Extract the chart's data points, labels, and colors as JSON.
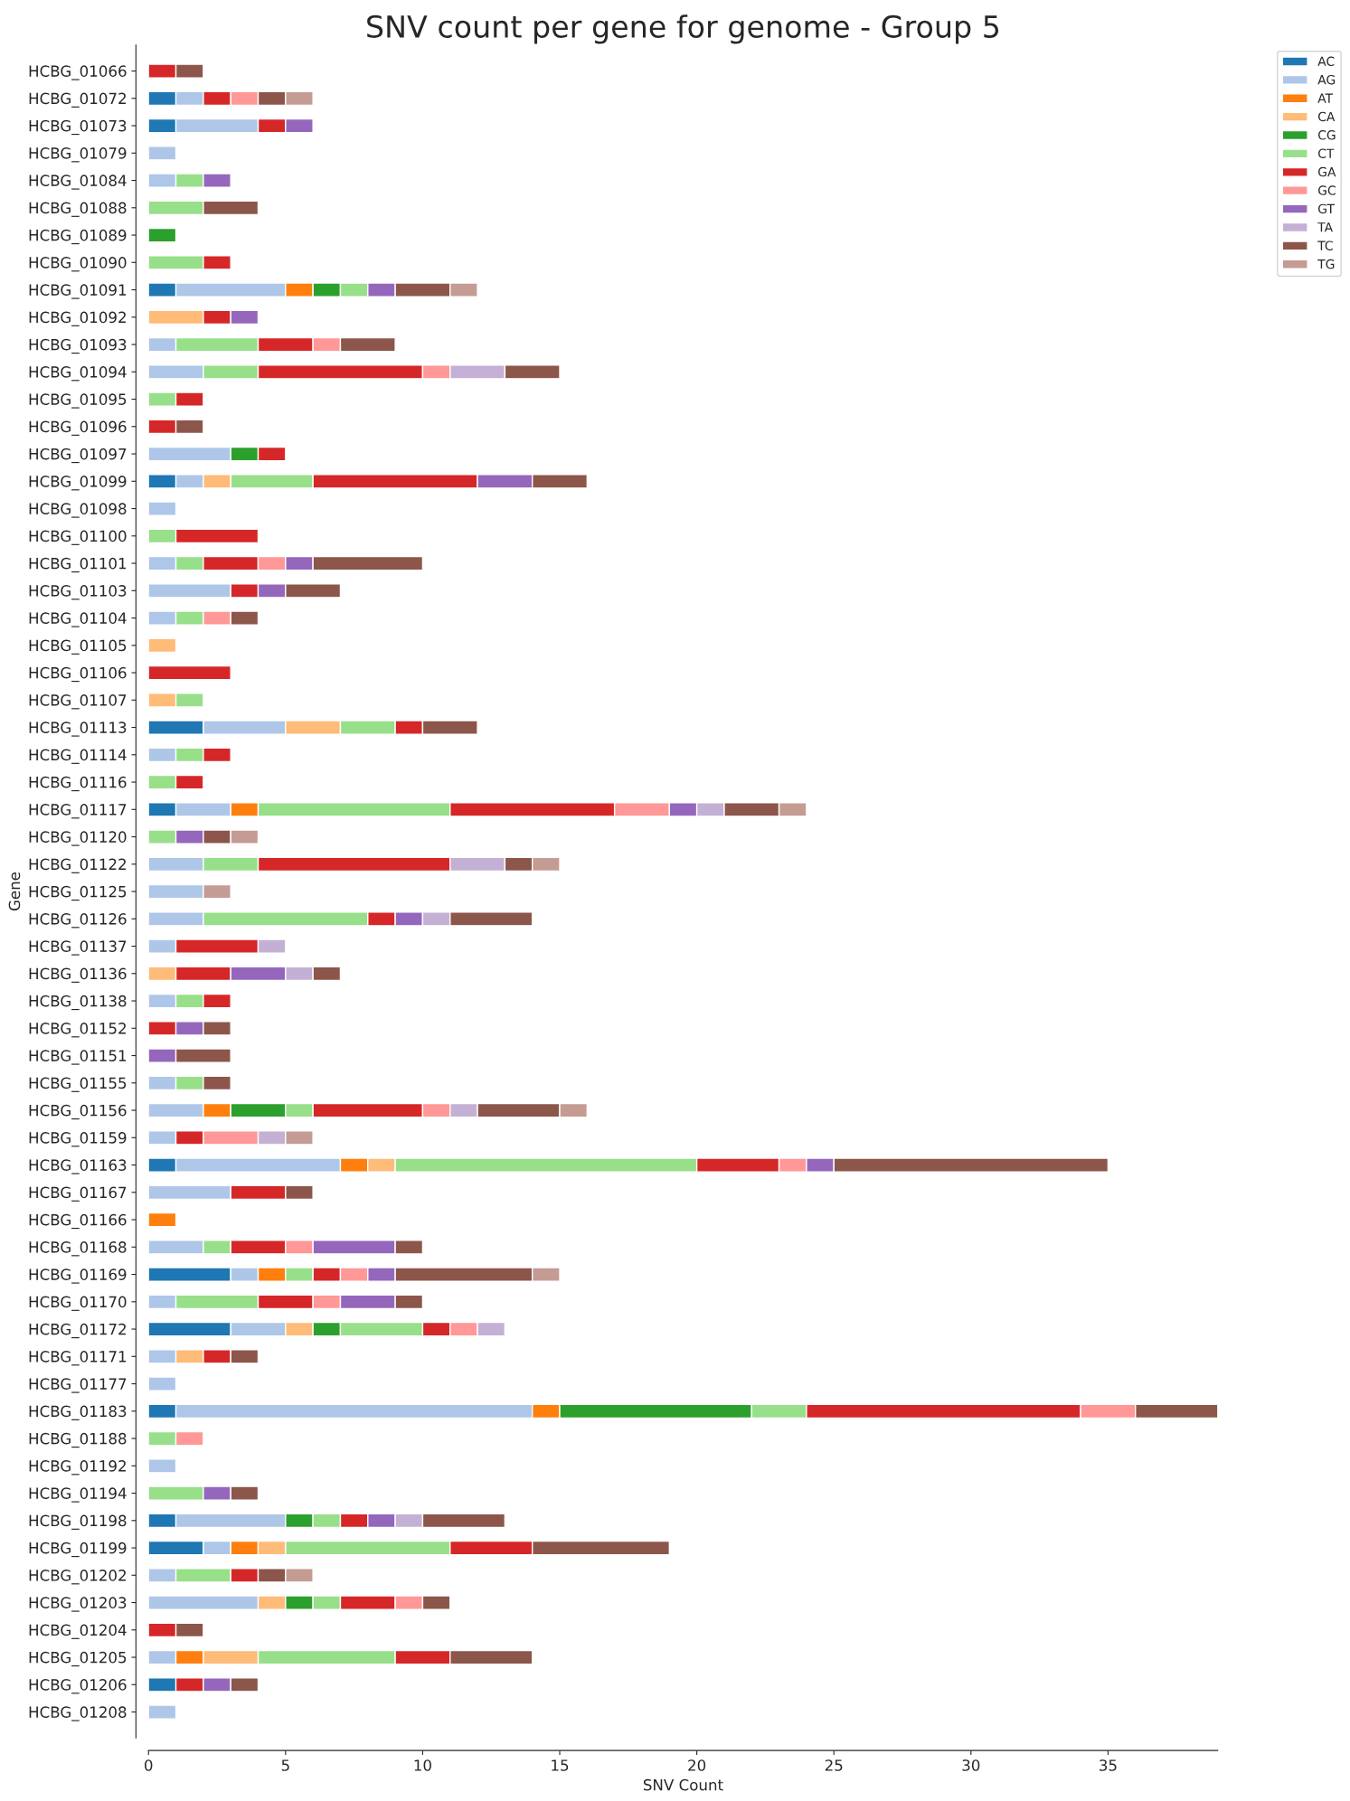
{
  "chart_data": {
    "type": "bar",
    "orientation": "horizontal",
    "stacked": true,
    "title": "SNV count per gene for genome - Group 5",
    "xlabel": "SNV Count",
    "ylabel": "Gene",
    "categories": [
      "HCBG_01066",
      "HCBG_01072",
      "HCBG_01073",
      "HCBG_01079",
      "HCBG_01084",
      "HCBG_01088",
      "HCBG_01089",
      "HCBG_01090",
      "HCBG_01091",
      "HCBG_01092",
      "HCBG_01093",
      "HCBG_01094",
      "HCBG_01095",
      "HCBG_01096",
      "HCBG_01097",
      "HCBG_01099",
      "HCBG_01098",
      "HCBG_01100",
      "HCBG_01101",
      "HCBG_01103",
      "HCBG_01104",
      "HCBG_01105",
      "HCBG_01106",
      "HCBG_01107",
      "HCBG_01113",
      "HCBG_01114",
      "HCBG_01116",
      "HCBG_01117",
      "HCBG_01120",
      "HCBG_01122",
      "HCBG_01125",
      "HCBG_01126",
      "HCBG_01137",
      "HCBG_01136",
      "HCBG_01138",
      "HCBG_01152",
      "HCBG_01151",
      "HCBG_01155",
      "HCBG_01156",
      "HCBG_01159",
      "HCBG_01163",
      "HCBG_01167",
      "HCBG_01166",
      "HCBG_01168",
      "HCBG_01169",
      "HCBG_01170",
      "HCBG_01172",
      "HCBG_01171",
      "HCBG_01177",
      "HCBG_01183",
      "HCBG_01188",
      "HCBG_01192",
      "HCBG_01194",
      "HCBG_01198",
      "HCBG_01199",
      "HCBG_01202",
      "HCBG_01203",
      "HCBG_01204",
      "HCBG_01205",
      "HCBG_01206",
      "HCBG_01208"
    ],
    "series": [
      {
        "name": "AC",
        "color": "#1f77b4",
        "values": [
          0,
          1,
          1,
          0,
          0,
          0,
          0,
          0,
          1,
          0,
          0,
          0,
          0,
          0,
          0,
          1,
          0,
          0,
          0,
          0,
          0,
          0,
          0,
          0,
          2,
          0,
          0,
          1,
          0,
          0,
          0,
          0,
          0,
          0,
          0,
          0,
          0,
          0,
          0,
          0,
          1,
          0,
          0,
          0,
          3,
          0,
          3,
          0,
          0,
          1,
          0,
          0,
          0,
          1,
          2,
          0,
          0,
          0,
          0,
          1,
          0
        ]
      },
      {
        "name": "AG",
        "color": "#aec7e8",
        "values": [
          0,
          1,
          3,
          1,
          1,
          0,
          0,
          0,
          4,
          0,
          1,
          2,
          0,
          0,
          3,
          1,
          1,
          0,
          1,
          3,
          1,
          0,
          0,
          0,
          3,
          1,
          0,
          2,
          0,
          2,
          2,
          2,
          1,
          0,
          1,
          0,
          0,
          1,
          2,
          1,
          6,
          3,
          0,
          2,
          1,
          1,
          2,
          1,
          1,
          13,
          0,
          1,
          0,
          4,
          1,
          1,
          4,
          0,
          1,
          0,
          1
        ]
      },
      {
        "name": "AT",
        "color": "#ff7f0e",
        "values": [
          0,
          0,
          0,
          0,
          0,
          0,
          0,
          0,
          1,
          0,
          0,
          0,
          0,
          0,
          0,
          0,
          0,
          0,
          0,
          0,
          0,
          0,
          0,
          0,
          0,
          0,
          0,
          1,
          0,
          0,
          0,
          0,
          0,
          0,
          0,
          0,
          0,
          0,
          1,
          0,
          1,
          0,
          1,
          0,
          1,
          0,
          0,
          0,
          0,
          1,
          0,
          0,
          0,
          0,
          1,
          0,
          0,
          0,
          1,
          0,
          0
        ]
      },
      {
        "name": "CA",
        "color": "#ffbb78",
        "values": [
          0,
          0,
          0,
          0,
          0,
          0,
          0,
          0,
          0,
          2,
          0,
          0,
          0,
          0,
          0,
          1,
          0,
          0,
          0,
          0,
          0,
          1,
          0,
          1,
          2,
          0,
          0,
          0,
          0,
          0,
          0,
          0,
          0,
          1,
          0,
          0,
          0,
          0,
          0,
          0,
          1,
          0,
          0,
          0,
          0,
          0,
          1,
          1,
          0,
          0,
          0,
          0,
          0,
          0,
          1,
          0,
          1,
          0,
          2,
          0,
          0
        ]
      },
      {
        "name": "CG",
        "color": "#2ca02c",
        "values": [
          0,
          0,
          0,
          0,
          0,
          0,
          1,
          0,
          1,
          0,
          0,
          0,
          0,
          0,
          1,
          0,
          0,
          0,
          0,
          0,
          0,
          0,
          0,
          0,
          0,
          0,
          0,
          0,
          0,
          0,
          0,
          0,
          0,
          0,
          0,
          0,
          0,
          0,
          2,
          0,
          0,
          0,
          0,
          0,
          0,
          0,
          1,
          0,
          0,
          7,
          0,
          0,
          0,
          1,
          0,
          0,
          1,
          0,
          0,
          0,
          0
        ]
      },
      {
        "name": "CT",
        "color": "#98df8a",
        "values": [
          0,
          0,
          0,
          0,
          1,
          2,
          0,
          2,
          1,
          0,
          3,
          2,
          1,
          0,
          0,
          3,
          0,
          1,
          1,
          0,
          1,
          0,
          0,
          1,
          2,
          1,
          1,
          7,
          1,
          2,
          0,
          6,
          0,
          0,
          1,
          0,
          0,
          1,
          1,
          0,
          11,
          0,
          0,
          1,
          1,
          3,
          3,
          0,
          0,
          2,
          1,
          0,
          2,
          1,
          6,
          2,
          1,
          0,
          5,
          0,
          0
        ]
      },
      {
        "name": "GA",
        "color": "#d62728",
        "values": [
          1,
          1,
          1,
          0,
          0,
          0,
          0,
          1,
          0,
          1,
          2,
          6,
          1,
          1,
          1,
          6,
          0,
          3,
          2,
          1,
          0,
          0,
          3,
          0,
          1,
          1,
          1,
          6,
          0,
          7,
          0,
          1,
          3,
          2,
          1,
          1,
          0,
          0,
          4,
          1,
          3,
          2,
          0,
          2,
          1,
          2,
          1,
          1,
          0,
          10,
          0,
          0,
          0,
          1,
          3,
          1,
          2,
          1,
          2,
          1,
          0
        ]
      },
      {
        "name": "GC",
        "color": "#ff9896",
        "values": [
          0,
          1,
          0,
          0,
          0,
          0,
          0,
          0,
          0,
          0,
          1,
          1,
          0,
          0,
          0,
          0,
          0,
          0,
          1,
          0,
          1,
          0,
          0,
          0,
          0,
          0,
          0,
          2,
          0,
          0,
          0,
          0,
          0,
          0,
          0,
          0,
          0,
          0,
          1,
          2,
          1,
          0,
          0,
          1,
          1,
          1,
          1,
          0,
          0,
          2,
          1,
          0,
          0,
          0,
          0,
          0,
          1,
          0,
          0,
          0,
          0
        ]
      },
      {
        "name": "GT",
        "color": "#9467bd",
        "values": [
          0,
          0,
          1,
          0,
          1,
          0,
          0,
          0,
          1,
          1,
          0,
          0,
          0,
          0,
          0,
          2,
          0,
          0,
          1,
          1,
          0,
          0,
          0,
          0,
          0,
          0,
          0,
          1,
          1,
          0,
          0,
          1,
          0,
          2,
          0,
          1,
          1,
          0,
          0,
          0,
          1,
          0,
          0,
          3,
          1,
          2,
          0,
          0,
          0,
          0,
          0,
          0,
          1,
          1,
          0,
          0,
          0,
          0,
          0,
          1,
          0
        ]
      },
      {
        "name": "TA",
        "color": "#c5b0d5",
        "values": [
          0,
          0,
          0,
          0,
          0,
          0,
          0,
          0,
          0,
          0,
          0,
          2,
          0,
          0,
          0,
          0,
          0,
          0,
          0,
          0,
          0,
          0,
          0,
          0,
          0,
          0,
          0,
          1,
          0,
          2,
          0,
          1,
          1,
          1,
          0,
          0,
          0,
          0,
          1,
          1,
          0,
          0,
          0,
          0,
          0,
          0,
          1,
          0,
          0,
          0,
          0,
          0,
          0,
          1,
          0,
          0,
          0,
          0,
          0,
          0,
          0
        ]
      },
      {
        "name": "TC",
        "color": "#8c564b",
        "values": [
          1,
          1,
          0,
          0,
          0,
          2,
          0,
          0,
          2,
          0,
          2,
          2,
          0,
          1,
          0,
          2,
          0,
          0,
          4,
          2,
          1,
          0,
          0,
          0,
          2,
          0,
          0,
          2,
          1,
          1,
          0,
          3,
          0,
          1,
          0,
          1,
          2,
          1,
          3,
          0,
          10,
          1,
          0,
          1,
          5,
          1,
          0,
          1,
          0,
          3,
          0,
          0,
          1,
          3,
          5,
          1,
          1,
          1,
          3,
          1,
          0
        ]
      },
      {
        "name": "TG",
        "color": "#c49c94",
        "values": [
          0,
          1,
          0,
          0,
          0,
          0,
          0,
          0,
          1,
          0,
          0,
          0,
          0,
          0,
          0,
          0,
          0,
          0,
          0,
          0,
          0,
          0,
          0,
          0,
          0,
          0,
          0,
          1,
          1,
          1,
          1,
          0,
          0,
          0,
          0,
          0,
          0,
          0,
          1,
          1,
          0,
          0,
          0,
          0,
          1,
          0,
          0,
          0,
          0,
          0,
          0,
          0,
          0,
          0,
          0,
          1,
          0,
          0,
          0,
          0,
          0
        ]
      }
    ],
    "xlim": [
      0,
      39
    ],
    "xticks": [
      0,
      5,
      10,
      15,
      20,
      25,
      30,
      35
    ],
    "grid": false,
    "legend": "top right"
  }
}
